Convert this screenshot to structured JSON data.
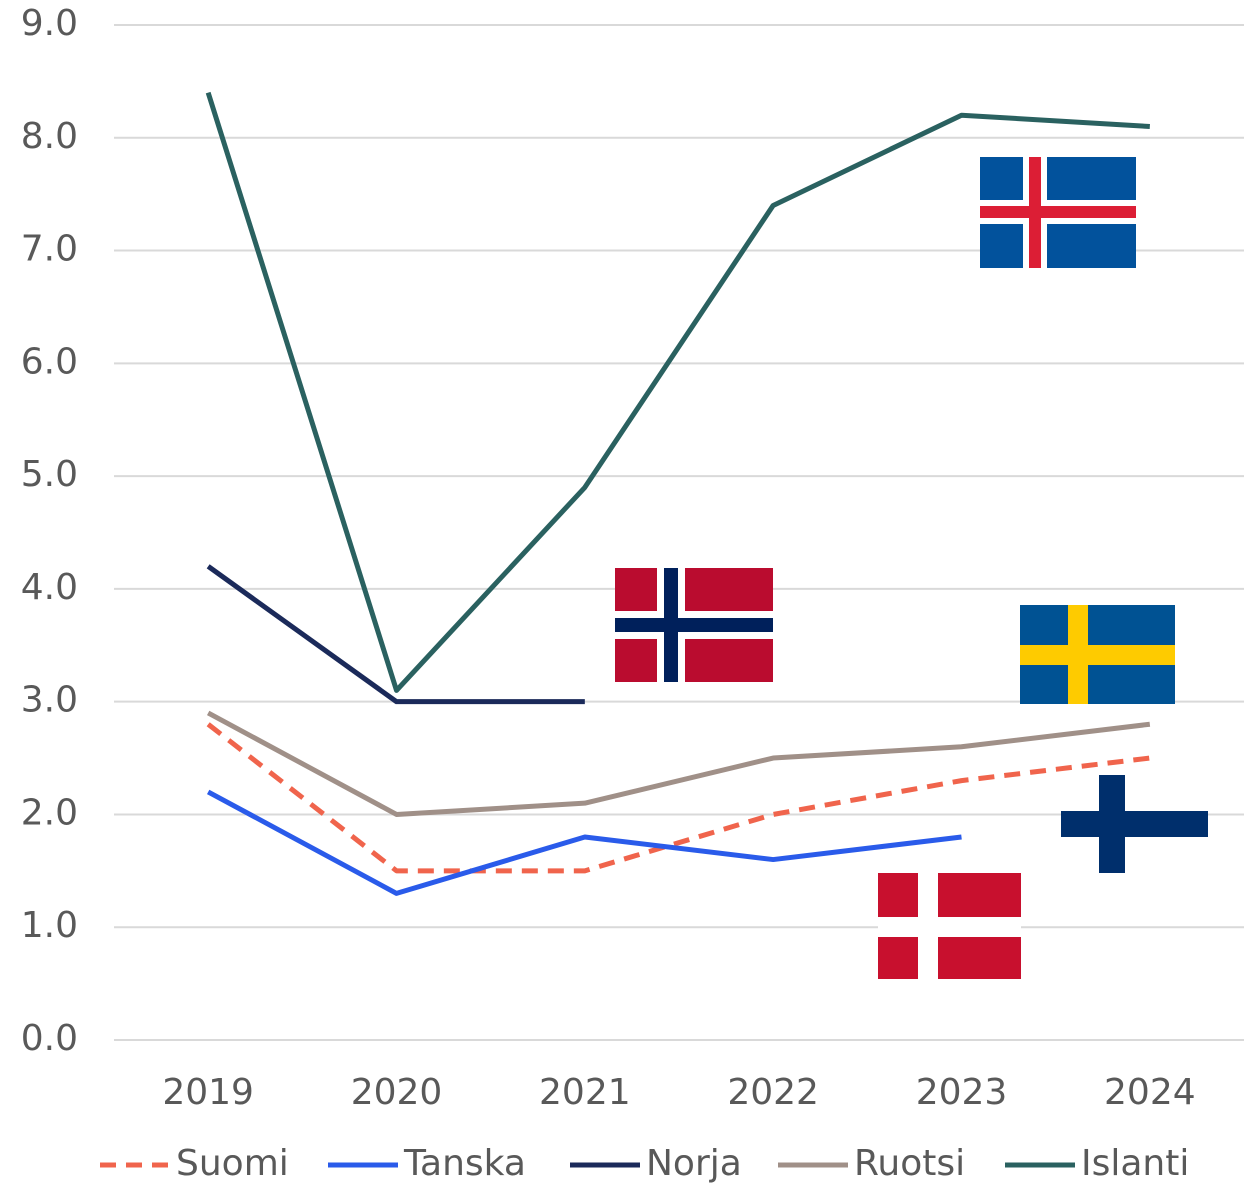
{
  "chart_data": {
    "type": "line",
    "categories": [
      "2019",
      "2020",
      "2021",
      "2022",
      "2023",
      "2024"
    ],
    "series": [
      {
        "name": "Suomi",
        "color": "#f0644c",
        "dashed": true,
        "values": [
          2.8,
          1.5,
          1.5,
          2.0,
          2.3,
          2.5
        ]
      },
      {
        "name": "Tanska",
        "color": "#2a5bea",
        "values": [
          2.2,
          1.3,
          1.8,
          1.6,
          1.8,
          null
        ]
      },
      {
        "name": "Norja",
        "color": "#1b2a5a",
        "values": [
          4.2,
          3.0,
          3.0,
          null,
          null,
          null
        ]
      },
      {
        "name": "Ruotsi",
        "color": "#a09088",
        "values": [
          2.9,
          2.0,
          2.1,
          2.5,
          2.6,
          2.8
        ]
      },
      {
        "name": "Islanti",
        "color": "#2a6160",
        "values": [
          8.4,
          3.1,
          4.9,
          7.4,
          8.2,
          8.1
        ]
      }
    ],
    "ylim": [
      0,
      9
    ],
    "yticks": [
      {
        "value": 0,
        "label": "0.0"
      },
      {
        "value": 1,
        "label": "1.0"
      },
      {
        "value": 2,
        "label": "2.0"
      },
      {
        "value": 3,
        "label": "3.0"
      },
      {
        "value": 4,
        "label": "4.0"
      },
      {
        "value": 5,
        "label": "5.0"
      },
      {
        "value": 6,
        "label": "6.0"
      },
      {
        "value": 7,
        "label": "7.0"
      },
      {
        "value": 8,
        "label": "8.0"
      },
      {
        "value": 9,
        "label": "9.0"
      }
    ],
    "grid": true,
    "legend": "bottom"
  }
}
